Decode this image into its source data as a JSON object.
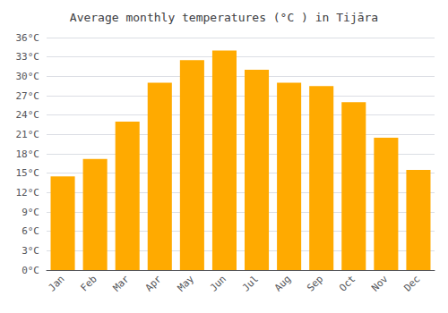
{
  "chart_data": {
    "type": "bar",
    "title": "Average monthly temperatures (°C ) in Tijāra",
    "categories": [
      "Jan",
      "Feb",
      "Mar",
      "Apr",
      "May",
      "Jun",
      "Jul",
      "Aug",
      "Sep",
      "Oct",
      "Nov",
      "Dec"
    ],
    "values": [
      14.5,
      17.2,
      23.0,
      29.0,
      32.5,
      34.0,
      31.0,
      29.0,
      28.5,
      26.0,
      20.5,
      15.5
    ],
    "color": "#FFAA00",
    "ylim": [
      0,
      36
    ],
    "yticks": [
      {
        "value": 0,
        "label": "0°C"
      },
      {
        "value": 3,
        "label": "3°C"
      },
      {
        "value": 6,
        "label": "6°C"
      },
      {
        "value": 9,
        "label": "9°C"
      },
      {
        "value": 12,
        "label": "12°C"
      },
      {
        "value": 15,
        "label": "15°C"
      },
      {
        "value": 18,
        "label": "18°C"
      },
      {
        "value": 21,
        "label": "21°C"
      },
      {
        "value": 24,
        "label": "24°C"
      },
      {
        "value": 27,
        "label": "27°C"
      },
      {
        "value": 30,
        "label": "30°C"
      },
      {
        "value": 33,
        "label": "33°C"
      },
      {
        "value": 36,
        "label": "36°C"
      }
    ],
    "grid": true
  }
}
